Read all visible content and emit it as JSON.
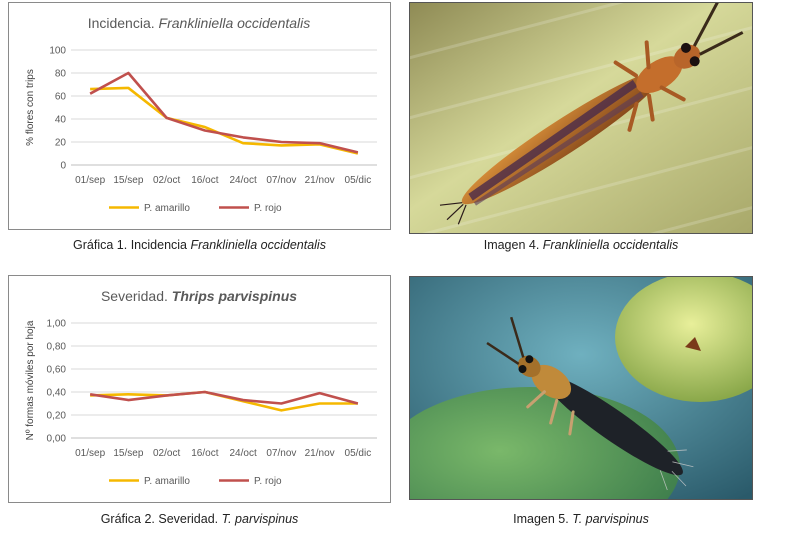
{
  "chart_data": [
    {
      "type": "line",
      "title_plain": "Incidencia. ",
      "title_italic": "Frankliniella occidentalis",
      "ylabel": "% flores con trips",
      "categories": [
        "01/sep",
        "15/sep",
        "02/oct",
        "16/oct",
        "24/oct",
        "07/nov",
        "21/nov",
        "05/dic"
      ],
      "yticks": [
        "0",
        "20",
        "40",
        "60",
        "80",
        "100"
      ],
      "ylim": [
        0,
        100
      ],
      "grid": true,
      "legend_position": "bottom",
      "series": [
        {
          "name": "P. amarillo",
          "color": "#f5b800",
          "values": [
            66,
            67,
            41,
            33,
            19,
            17,
            18,
            10
          ]
        },
        {
          "name": "P. rojo",
          "color": "#c0504d",
          "values": [
            62,
            80,
            41,
            30,
            24,
            20,
            19,
            11
          ]
        }
      ]
    },
    {
      "type": "line",
      "title_plain": "Severidad. ",
      "title_italic": "Thrips parvispinus",
      "ylabel": "Nº formas móviles por hoja",
      "categories": [
        "01/sep",
        "15/sep",
        "02/oct",
        "16/oct",
        "24/oct",
        "07/nov",
        "21/nov",
        "05/dic"
      ],
      "yticks": [
        "0,00",
        "0,20",
        "0,40",
        "0,60",
        "0,80",
        "1,00"
      ],
      "ylim": [
        0,
        1
      ],
      "grid": true,
      "legend_position": "bottom",
      "series": [
        {
          "name": "P. amarillo",
          "color": "#f5b800",
          "values": [
            0.37,
            0.38,
            0.37,
            0.4,
            0.32,
            0.24,
            0.3,
            0.3
          ]
        },
        {
          "name": "P. rojo",
          "color": "#c0504d",
          "values": [
            0.38,
            0.33,
            0.37,
            0.4,
            0.33,
            0.3,
            0.39,
            0.3
          ]
        }
      ]
    }
  ],
  "captions": {
    "chart1_plain": "Gráfica 1. Incidencia ",
    "chart1_italic": "Frankliniella occidentalis",
    "image4_plain": "Imagen 4. ",
    "image4_italic": "Frankliniella occidentalis",
    "chart2_plain": "Gráfica 2. Severidad. ",
    "chart2_italic": "T. parvispinus",
    "image5_plain": "Imagen 5. ",
    "image5_italic": "T. parvispinus"
  },
  "photo_icons": [
    "thrips-photo-icon",
    "thrips-photo-icon"
  ]
}
